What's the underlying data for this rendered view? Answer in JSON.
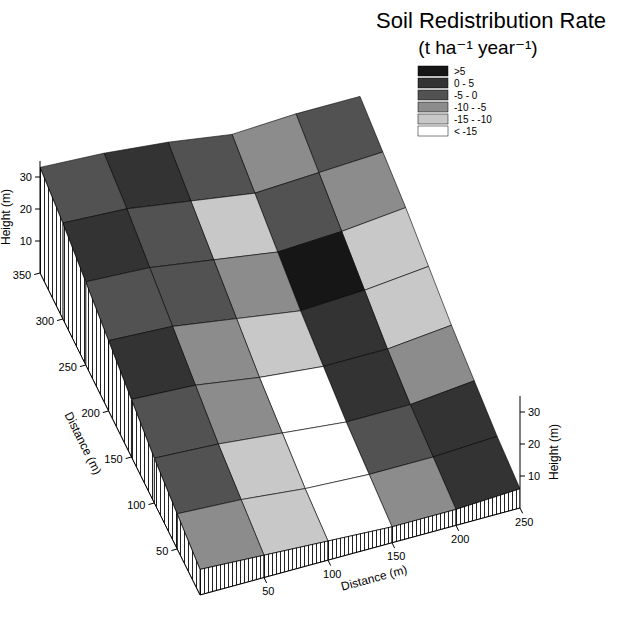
{
  "chart_data": {
    "type": "surface3d",
    "title": "Soil Redistribution Rate",
    "subtitle": "(t ha⁻¹ year⁻¹)",
    "x_label": "Distance (m)",
    "y_label": "Distance (m)",
    "z_label": "Height (m)",
    "x": [
      0,
      50,
      100,
      150,
      200,
      250
    ],
    "y": [
      0,
      50,
      100,
      150,
      200,
      250,
      300,
      350
    ],
    "xlim": [
      0,
      250
    ],
    "ylim": [
      0,
      350
    ],
    "zlim": [
      0,
      35
    ],
    "xticks": [
      50,
      100,
      150,
      200,
      250
    ],
    "yticks": [
      50,
      100,
      150,
      200,
      250,
      300,
      350
    ],
    "zticks": [
      10,
      20,
      30
    ],
    "heights": [
      [
        8,
        7,
        6,
        5,
        5,
        6
      ],
      [
        11,
        10,
        8,
        7,
        7,
        8
      ],
      [
        14,
        13,
        11,
        9,
        9,
        11
      ],
      [
        18,
        17,
        14,
        12,
        12,
        14
      ],
      [
        22,
        21,
        18,
        15,
        16,
        18
      ],
      [
        26,
        25,
        22,
        19,
        20,
        22
      ],
      [
        30,
        29,
        26,
        23,
        24,
        25
      ],
      [
        33,
        32,
        30,
        27,
        28,
        28
      ]
    ],
    "rates": [
      [
        -8,
        -12,
        -18,
        -6,
        2
      ],
      [
        -4,
        -14,
        -20,
        -3,
        3
      ],
      [
        -2,
        -10,
        -16,
        1,
        -7
      ],
      [
        3,
        -6,
        -12,
        4,
        -11
      ],
      [
        -1,
        -3,
        -8,
        6,
        -13
      ],
      [
        2,
        -5,
        -11,
        -2,
        -9
      ],
      [
        -3,
        1,
        -4,
        -7,
        -4
      ]
    ],
    "classes": [
      {
        "label": ">5",
        "min": 5,
        "max": null,
        "color": "#161616"
      },
      {
        "label": "0 - 5",
        "min": 0,
        "max": 5,
        "color": "#333333"
      },
      {
        "label": "-5 - 0",
        "min": -5,
        "max": 0,
        "color": "#525252"
      },
      {
        "label": "-10 - -5",
        "min": -10,
        "max": -5,
        "color": "#8c8c8c"
      },
      {
        "label": "-15 - -10",
        "min": -15,
        "max": -10,
        "color": "#c8c8c8"
      },
      {
        "label": "< -15",
        "min": null,
        "max": -15,
        "color": "#ffffff"
      }
    ]
  }
}
